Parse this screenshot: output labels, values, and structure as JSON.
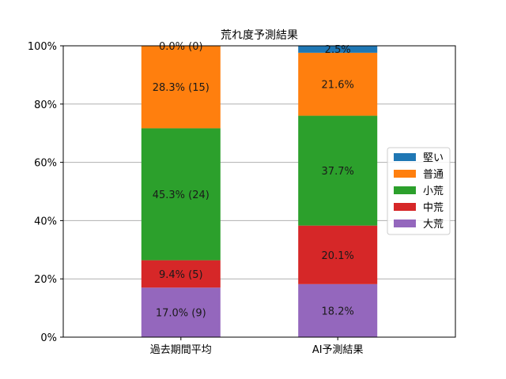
{
  "chart_data": {
    "type": "bar",
    "stacked": true,
    "title": "荒れ度予測結果",
    "xlabel": "",
    "ylabel": "",
    "categories": [
      "過去期間平均",
      "AI予測結果"
    ],
    "ylim": [
      0,
      100
    ],
    "y_ticks": [
      "0%",
      "20%",
      "40%",
      "60%",
      "80%",
      "100%"
    ],
    "grid": "horizontal",
    "legend_position": "right",
    "series": [
      {
        "name": "大荒",
        "color": "#9467bd",
        "values": [
          17.0,
          18.2
        ],
        "labels": [
          "17.0% (9)",
          "18.2%"
        ]
      },
      {
        "name": "中荒",
        "color": "#d62728",
        "values": [
          9.4,
          20.1
        ],
        "labels": [
          "9.4% (5)",
          "20.1%"
        ]
      },
      {
        "name": "小荒",
        "color": "#2ca02c",
        "values": [
          45.3,
          37.7
        ],
        "labels": [
          "45.3% (24)",
          "37.7%"
        ]
      },
      {
        "name": "普通",
        "color": "#ff7f0e",
        "values": [
          28.3,
          21.6
        ],
        "labels": [
          "28.3% (15)",
          "21.6%"
        ]
      },
      {
        "name": "堅い",
        "color": "#1f77b4",
        "values": [
          0.0,
          2.5
        ],
        "labels": [
          "0.0% (0)",
          "2.5%"
        ]
      }
    ],
    "legend_order": [
      "堅い",
      "普通",
      "小荒",
      "中荒",
      "大荒"
    ]
  }
}
